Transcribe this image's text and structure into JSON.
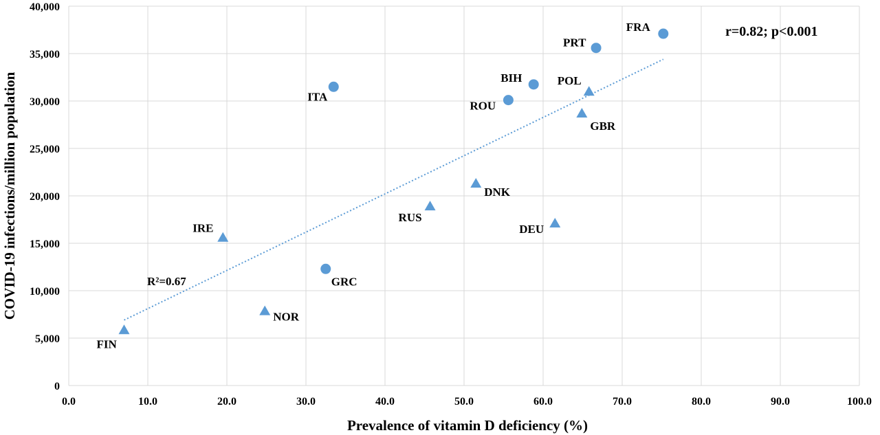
{
  "chart_data": {
    "type": "scatter",
    "xlabel": "Prevalence of vitamin D deficiency (%)",
    "ylabel": "COVID-19 infections/million population",
    "xlim": [
      0,
      100
    ],
    "ylim": [
      0,
      40000
    ],
    "x_ticks": [
      "0.0",
      "10.0",
      "20.0",
      "30.0",
      "40.0",
      "50.0",
      "60.0",
      "70.0",
      "80.0",
      "90.0",
      "100.0"
    ],
    "y_ticks": [
      "0",
      "5,000",
      "10,000",
      "15,000",
      "20,000",
      "25,000",
      "30,000",
      "35,000",
      "40,000"
    ],
    "grid": true,
    "marker_color": "#5b9bd5",
    "points": [
      {
        "label": "FRA",
        "x": 75.2,
        "y": 37100,
        "marker": "circle"
      },
      {
        "label": "PRT",
        "x": 66.7,
        "y": 35600,
        "marker": "circle"
      },
      {
        "label": "BIH",
        "x": 58.8,
        "y": 31750,
        "marker": "circle"
      },
      {
        "label": "ROU",
        "x": 55.6,
        "y": 30100,
        "marker": "circle"
      },
      {
        "label": "ITA",
        "x": 33.5,
        "y": 31500,
        "marker": "circle"
      },
      {
        "label": "GRC",
        "x": 32.5,
        "y": 12300,
        "marker": "circle"
      },
      {
        "label": "POL",
        "x": 65.8,
        "y": 31000,
        "marker": "triangle"
      },
      {
        "label": "GBR",
        "x": 64.9,
        "y": 28700,
        "marker": "triangle"
      },
      {
        "label": "DNK",
        "x": 51.5,
        "y": 21300,
        "marker": "triangle"
      },
      {
        "label": "RUS",
        "x": 45.7,
        "y": 18900,
        "marker": "triangle"
      },
      {
        "label": "DEU",
        "x": 61.5,
        "y": 17100,
        "marker": "triangle"
      },
      {
        "label": "IRE",
        "x": 19.5,
        "y": 15600,
        "marker": "triangle"
      },
      {
        "label": "NOR",
        "x": 24.8,
        "y": 7850,
        "marker": "triangle"
      },
      {
        "label": "FIN",
        "x": 7.0,
        "y": 5850,
        "marker": "triangle"
      }
    ],
    "trendline": {
      "x": [
        7.0,
        75.2
      ],
      "y": [
        6900,
        34400
      ]
    },
    "r2_label": "R²=0.67",
    "stat_label": "r=0.82; p<0.001"
  }
}
